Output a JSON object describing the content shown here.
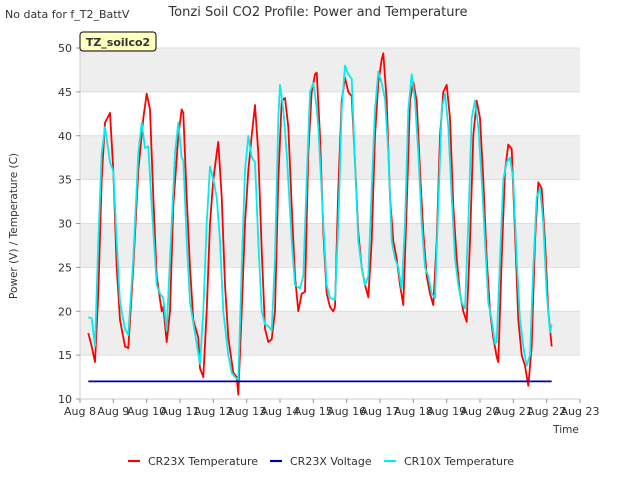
{
  "chart_data": {
    "type": "line",
    "title": "Tonzi Soil CO2 Profile: Power and Temperature",
    "no_data_note": "No data for f_T2_BattV",
    "badge": "TZ_soilco2",
    "xlabel": "Time",
    "ylabel": "Power (V) / Temperature (C)",
    "x_ticks": [
      "Aug 8",
      "Aug 9",
      "Aug 10",
      "Aug 11",
      "Aug 12",
      "Aug 13",
      "Aug 14",
      "Aug 15",
      "Aug 16",
      "Aug 17",
      "Aug 18",
      "Aug 19",
      "Aug 20",
      "Aug 21",
      "Aug 22",
      "Aug 23"
    ],
    "xlim": [
      8.0,
      23.0
    ],
    "ylim": [
      10,
      50
    ],
    "y_ticks": [
      10,
      15,
      20,
      25,
      30,
      35,
      40,
      45,
      50
    ],
    "grid": true,
    "legend_position": "bottom",
    "series": [
      {
        "name": "CR23X Temperature",
        "color": "#ff0000",
        "points": [
          [
            8.25,
            17.5
          ],
          [
            8.35,
            16
          ],
          [
            8.45,
            14.2
          ],
          [
            8.55,
            22
          ],
          [
            8.65,
            35
          ],
          [
            8.75,
            41.5
          ],
          [
            8.9,
            42.6
          ],
          [
            9.0,
            36
          ],
          [
            9.1,
            25
          ],
          [
            9.2,
            19
          ],
          [
            9.35,
            16
          ],
          [
            9.45,
            15.8
          ],
          [
            9.6,
            25
          ],
          [
            9.75,
            36
          ],
          [
            9.9,
            42
          ],
          [
            10.0,
            44.8
          ],
          [
            10.1,
            43
          ],
          [
            10.2,
            33
          ],
          [
            10.3,
            24
          ],
          [
            10.45,
            20
          ],
          [
            10.5,
            20.5
          ],
          [
            10.6,
            16.5
          ],
          [
            10.7,
            20
          ],
          [
            10.8,
            32
          ],
          [
            10.95,
            40
          ],
          [
            11.05,
            43
          ],
          [
            11.1,
            42.6
          ],
          [
            11.2,
            33
          ],
          [
            11.3,
            25
          ],
          [
            11.4,
            19
          ],
          [
            11.55,
            17
          ],
          [
            11.6,
            13.5
          ],
          [
            11.7,
            12.5
          ],
          [
            11.8,
            20
          ],
          [
            11.9,
            30
          ],
          [
            12.0,
            35
          ],
          [
            12.1,
            38
          ],
          [
            12.15,
            39.3
          ],
          [
            12.25,
            33
          ],
          [
            12.35,
            23
          ],
          [
            12.45,
            17
          ],
          [
            12.6,
            13
          ],
          [
            12.7,
            12.5
          ],
          [
            12.75,
            10.5
          ],
          [
            12.85,
            20
          ],
          [
            12.95,
            30
          ],
          [
            13.05,
            36
          ],
          [
            13.15,
            40
          ],
          [
            13.25,
            43.5
          ],
          [
            13.35,
            38
          ],
          [
            13.45,
            27
          ],
          [
            13.55,
            18
          ],
          [
            13.65,
            16.5
          ],
          [
            13.75,
            16.8
          ],
          [
            13.85,
            20
          ],
          [
            13.95,
            35
          ],
          [
            14.05,
            44
          ],
          [
            14.15,
            44.3
          ],
          [
            14.25,
            41
          ],
          [
            14.35,
            32
          ],
          [
            14.45,
            24
          ],
          [
            14.55,
            20
          ],
          [
            14.65,
            22
          ],
          [
            14.75,
            22.2
          ],
          [
            14.85,
            38
          ],
          [
            14.95,
            45
          ],
          [
            15.05,
            47
          ],
          [
            15.1,
            47.2
          ],
          [
            15.2,
            40
          ],
          [
            15.3,
            29
          ],
          [
            15.4,
            22
          ],
          [
            15.5,
            20.5
          ],
          [
            15.6,
            20
          ],
          [
            15.65,
            20.5
          ],
          [
            15.75,
            34
          ],
          [
            15.85,
            44
          ],
          [
            15.95,
            46.6
          ],
          [
            16.05,
            45
          ],
          [
            16.15,
            44.5
          ],
          [
            16.25,
            37
          ],
          [
            16.35,
            29
          ],
          [
            16.45,
            25
          ],
          [
            16.55,
            23
          ],
          [
            16.65,
            21.6
          ],
          [
            16.75,
            28
          ],
          [
            16.85,
            40
          ],
          [
            16.95,
            46
          ],
          [
            17.05,
            48.7
          ],
          [
            17.1,
            49.4
          ],
          [
            17.2,
            44
          ],
          [
            17.3,
            33
          ],
          [
            17.4,
            28
          ],
          [
            17.5,
            26
          ],
          [
            17.6,
            23
          ],
          [
            17.7,
            20.7
          ],
          [
            17.8,
            32
          ],
          [
            17.9,
            44
          ],
          [
            18.0,
            46.1
          ],
          [
            18.1,
            44
          ],
          [
            18.2,
            36
          ],
          [
            18.3,
            29
          ],
          [
            18.4,
            24
          ],
          [
            18.5,
            22
          ],
          [
            18.6,
            20.7
          ],
          [
            18.7,
            28
          ],
          [
            18.8,
            40
          ],
          [
            18.9,
            45
          ],
          [
            19.0,
            45.8
          ],
          [
            19.1,
            42
          ],
          [
            19.2,
            32
          ],
          [
            19.3,
            26
          ],
          [
            19.4,
            22
          ],
          [
            19.5,
            20
          ],
          [
            19.6,
            18.8
          ],
          [
            19.7,
            28
          ],
          [
            19.8,
            40
          ],
          [
            19.9,
            44
          ],
          [
            20.0,
            42
          ],
          [
            20.1,
            35
          ],
          [
            20.2,
            26
          ],
          [
            20.3,
            20
          ],
          [
            20.4,
            17
          ],
          [
            20.5,
            14.8
          ],
          [
            20.55,
            14.2
          ],
          [
            20.65,
            26
          ],
          [
            20.75,
            36
          ],
          [
            20.85,
            39
          ],
          [
            20.95,
            38.5
          ],
          [
            21.05,
            29
          ],
          [
            21.15,
            19
          ],
          [
            21.25,
            15
          ],
          [
            21.35,
            13.8
          ],
          [
            21.45,
            11.5
          ],
          [
            21.55,
            16
          ],
          [
            21.65,
            28
          ],
          [
            21.75,
            34.7
          ],
          [
            21.85,
            34
          ],
          [
            21.95,
            28
          ],
          [
            22.05,
            20
          ],
          [
            22.15,
            16
          ]
        ]
      },
      {
        "name": "CR23X Voltage",
        "color": "#0000aa",
        "points": [
          [
            8.25,
            12.0
          ],
          [
            22.15,
            12.0
          ]
        ]
      },
      {
        "name": "CR10X Temperature",
        "color": "#00eeee",
        "points": [
          [
            8.25,
            19.3
          ],
          [
            8.35,
            19.2
          ],
          [
            8.45,
            16
          ],
          [
            8.55,
            28
          ],
          [
            8.65,
            38
          ],
          [
            8.75,
            41
          ],
          [
            8.9,
            37
          ],
          [
            9.0,
            36
          ],
          [
            9.1,
            28
          ],
          [
            9.2,
            21
          ],
          [
            9.35,
            18
          ],
          [
            9.45,
            17.3
          ],
          [
            9.6,
            26
          ],
          [
            9.75,
            38
          ],
          [
            9.85,
            41.5
          ],
          [
            9.95,
            38.6
          ],
          [
            10.05,
            38.8
          ],
          [
            10.15,
            32
          ],
          [
            10.3,
            23
          ],
          [
            10.4,
            22
          ],
          [
            10.5,
            21.5
          ],
          [
            10.6,
            17.8
          ],
          [
            10.7,
            26
          ],
          [
            10.85,
            38
          ],
          [
            10.95,
            41.5
          ],
          [
            11.05,
            37.5
          ],
          [
            11.1,
            37.2
          ],
          [
            11.2,
            28
          ],
          [
            11.3,
            21
          ],
          [
            11.45,
            17.5
          ],
          [
            11.6,
            14
          ],
          [
            11.7,
            20
          ],
          [
            11.8,
            30
          ],
          [
            11.9,
            36.5
          ],
          [
            12.0,
            35
          ],
          [
            12.1,
            33
          ],
          [
            12.2,
            28
          ],
          [
            12.3,
            20
          ],
          [
            12.45,
            15
          ],
          [
            12.55,
            13
          ],
          [
            12.65,
            12.5
          ],
          [
            12.75,
            12.2
          ],
          [
            12.85,
            25
          ],
          [
            12.95,
            36
          ],
          [
            13.05,
            40
          ],
          [
            13.15,
            37.5
          ],
          [
            13.25,
            37
          ],
          [
            13.35,
            28
          ],
          [
            13.45,
            20
          ],
          [
            13.55,
            18.5
          ],
          [
            13.65,
            18.3
          ],
          [
            13.75,
            17.8
          ],
          [
            13.85,
            26
          ],
          [
            13.95,
            42
          ],
          [
            14.0,
            45.8
          ],
          [
            14.1,
            43
          ],
          [
            14.2,
            38
          ],
          [
            14.35,
            28
          ],
          [
            14.45,
            23
          ],
          [
            14.6,
            22.6
          ],
          [
            14.7,
            24
          ],
          [
            14.8,
            35
          ],
          [
            14.9,
            45
          ],
          [
            15.0,
            46
          ],
          [
            15.1,
            43.2
          ],
          [
            15.15,
            41
          ],
          [
            15.3,
            30
          ],
          [
            15.4,
            23
          ],
          [
            15.5,
            21.5
          ],
          [
            15.65,
            21.3
          ],
          [
            15.75,
            30
          ],
          [
            15.85,
            43
          ],
          [
            15.95,
            48
          ],
          [
            16.05,
            47
          ],
          [
            16.15,
            46.5
          ],
          [
            16.25,
            37
          ],
          [
            16.35,
            28
          ],
          [
            16.45,
            25
          ],
          [
            16.55,
            23
          ],
          [
            16.65,
            24
          ],
          [
            16.75,
            34
          ],
          [
            16.85,
            43
          ],
          [
            16.95,
            47.3
          ],
          [
            17.05,
            46
          ],
          [
            17.15,
            44.2
          ],
          [
            17.25,
            38
          ],
          [
            17.35,
            28
          ],
          [
            17.45,
            26
          ],
          [
            17.55,
            25
          ],
          [
            17.65,
            22.5
          ],
          [
            17.75,
            30
          ],
          [
            17.85,
            43
          ],
          [
            17.95,
            47
          ],
          [
            18.05,
            44
          ],
          [
            18.15,
            38
          ],
          [
            18.25,
            30
          ],
          [
            18.35,
            25
          ],
          [
            18.45,
            24
          ],
          [
            18.55,
            22
          ],
          [
            18.65,
            21.5
          ],
          [
            18.75,
            32
          ],
          [
            18.85,
            43
          ],
          [
            18.95,
            44.8
          ],
          [
            19.05,
            41
          ],
          [
            19.15,
            33
          ],
          [
            19.25,
            26
          ],
          [
            19.35,
            23
          ],
          [
            19.45,
            21
          ],
          [
            19.55,
            20.3
          ],
          [
            19.65,
            30
          ],
          [
            19.75,
            42
          ],
          [
            19.85,
            44
          ],
          [
            19.95,
            41
          ],
          [
            20.05,
            35
          ],
          [
            20.15,
            28
          ],
          [
            20.25,
            21
          ],
          [
            20.35,
            19
          ],
          [
            20.45,
            16.3
          ],
          [
            20.5,
            16.5
          ],
          [
            20.6,
            26
          ],
          [
            20.7,
            35
          ],
          [
            20.8,
            37
          ],
          [
            20.9,
            37.5
          ],
          [
            21.0,
            35
          ],
          [
            21.1,
            26
          ],
          [
            21.2,
            19
          ],
          [
            21.3,
            16
          ],
          [
            21.4,
            13.8
          ],
          [
            21.5,
            15
          ],
          [
            21.6,
            25
          ],
          [
            21.7,
            33
          ],
          [
            21.8,
            34
          ],
          [
            21.9,
            30
          ],
          [
            22.0,
            22
          ],
          [
            22.1,
            17.6
          ],
          [
            22.15,
            18.5
          ]
        ]
      }
    ]
  }
}
